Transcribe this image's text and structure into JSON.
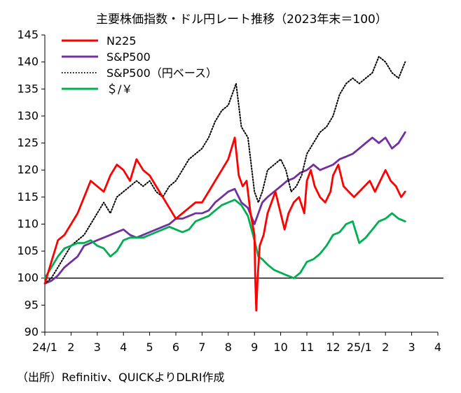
{
  "chart_data": {
    "type": "line",
    "title": "主要株価指数・ドル円レート推移（2023年末＝100）",
    "xlabel": "",
    "ylabel": "",
    "ylim": [
      90,
      145
    ],
    "yticks": [
      90,
      95,
      100,
      105,
      110,
      115,
      120,
      125,
      130,
      135,
      140,
      145
    ],
    "ytick_labels": [
      "90",
      "95",
      "100",
      "105",
      "110",
      "115",
      "120",
      "125",
      "130",
      "135",
      "140",
      "145"
    ],
    "xlim": [
      0,
      15
    ],
    "xticks": [
      0,
      1,
      2,
      3,
      4,
      5,
      6,
      7,
      8,
      9,
      10,
      11,
      12,
      13,
      14,
      15
    ],
    "xtick_labels": [
      "24/1",
      "2",
      "3",
      "4",
      "5",
      "6",
      "7",
      "8",
      "9",
      "10",
      "11",
      "12",
      "25/1",
      "2",
      "3",
      "4"
    ],
    "baseline": 100,
    "grid": false,
    "legend_position": "top-left",
    "series": [
      {
        "name": "N225",
        "color": "#ff0000",
        "style": "solid",
        "x": [
          0,
          0.25,
          0.5,
          0.75,
          1.0,
          1.25,
          1.5,
          1.75,
          2.0,
          2.25,
          2.5,
          2.75,
          3.0,
          3.25,
          3.5,
          3.75,
          4.0,
          4.25,
          4.5,
          4.75,
          5.0,
          5.25,
          5.5,
          5.75,
          6.0,
          6.25,
          6.5,
          6.75,
          7.0,
          7.25,
          7.4,
          7.55,
          7.7,
          7.85,
          8.0,
          8.03,
          8.07,
          8.12,
          8.2,
          8.35,
          8.5,
          8.65,
          8.8,
          9.0,
          9.15,
          9.3,
          9.5,
          9.7,
          9.9,
          10.0,
          10.15,
          10.3,
          10.5,
          10.7,
          10.9,
          11.0,
          11.2,
          11.4,
          11.6,
          11.8,
          12.0,
          12.2,
          12.4,
          12.6,
          12.8,
          13.0,
          13.2,
          13.4,
          13.6,
          13.75
        ],
        "y": [
          99,
          103,
          107,
          108,
          110,
          112,
          115,
          118,
          117,
          116,
          119,
          121,
          120,
          118,
          122,
          120,
          119,
          117,
          115,
          113,
          111,
          112,
          113,
          114,
          114,
          116,
          118,
          120,
          122,
          126,
          119,
          117,
          118,
          112,
          108,
          100,
          94,
          100,
          106,
          108,
          112,
          114,
          116,
          112,
          109,
          112,
          114,
          115,
          112,
          118,
          120,
          117,
          115,
          114,
          116,
          119,
          121,
          117,
          116,
          115,
          116,
          117,
          118,
          116,
          118,
          120,
          118,
          117,
          115,
          116
        ]
      },
      {
        "name": "S&P500",
        "color": "#7030a0",
        "style": "solid",
        "x": [
          0,
          0.25,
          0.5,
          0.75,
          1.0,
          1.25,
          1.5,
          1.75,
          2.0,
          2.25,
          2.5,
          2.75,
          3.0,
          3.25,
          3.5,
          3.75,
          4.0,
          4.25,
          4.5,
          4.75,
          5.0,
          5.25,
          5.5,
          5.75,
          6.0,
          6.25,
          6.5,
          6.75,
          7.0,
          7.25,
          7.5,
          7.75,
          8.0,
          8.15,
          8.3,
          8.5,
          8.75,
          9.0,
          9.25,
          9.5,
          9.75,
          10.0,
          10.25,
          10.5,
          10.75,
          11.0,
          11.25,
          11.5,
          11.75,
          12.0,
          12.25,
          12.5,
          12.75,
          13.0,
          13.25,
          13.5,
          13.75
        ],
        "y": [
          99,
          99.5,
          100.5,
          102,
          103,
          104,
          106,
          106.5,
          107,
          107.5,
          108,
          108.5,
          109,
          108,
          107.5,
          108,
          108.5,
          109,
          109.5,
          110,
          111,
          111,
          111.5,
          112,
          112,
          112.5,
          114,
          115,
          116,
          116.5,
          114,
          113,
          110,
          112,
          114,
          115,
          116,
          117,
          118,
          118.5,
          119.5,
          120,
          121,
          120,
          120.5,
          121,
          122,
          122.5,
          123,
          124,
          125,
          126,
          125,
          126,
          124,
          125,
          127
        ]
      },
      {
        "name": "S&P500（円ベース）",
        "color": "#000000",
        "style": "dotted",
        "x": [
          0,
          0.25,
          0.5,
          0.75,
          1.0,
          1.25,
          1.5,
          1.75,
          2.0,
          2.25,
          2.5,
          2.75,
          3.0,
          3.25,
          3.5,
          3.75,
          4.0,
          4.25,
          4.5,
          4.75,
          5.0,
          5.25,
          5.5,
          5.75,
          6.0,
          6.25,
          6.5,
          6.75,
          7.0,
          7.15,
          7.3,
          7.5,
          7.75,
          8.0,
          8.15,
          8.3,
          8.5,
          8.75,
          9.0,
          9.2,
          9.4,
          9.6,
          9.8,
          10.0,
          10.25,
          10.5,
          10.75,
          11.0,
          11.25,
          11.5,
          11.75,
          12.0,
          12.25,
          12.5,
          12.75,
          13.0,
          13.25,
          13.5,
          13.75
        ],
        "y": [
          99,
          100,
          102,
          104,
          106,
          107,
          108,
          110,
          112,
          114,
          112,
          115,
          116,
          117,
          118,
          117,
          118,
          116,
          115,
          117,
          118,
          120,
          122,
          123,
          124,
          126,
          129,
          131,
          132,
          134,
          136,
          128,
          126,
          116,
          114,
          116,
          120,
          121,
          122,
          120,
          116,
          117,
          119,
          123,
          125,
          127,
          128,
          130,
          134,
          136,
          137,
          136,
          137,
          138,
          141,
          140,
          138,
          137,
          140
        ]
      },
      {
        "name": "＄/￥",
        "color": "#00b050",
        "style": "solid",
        "x": [
          0,
          0.25,
          0.5,
          0.75,
          1.0,
          1.25,
          1.5,
          1.75,
          2.0,
          2.25,
          2.5,
          2.75,
          3.0,
          3.25,
          3.5,
          3.75,
          4.0,
          4.25,
          4.5,
          4.75,
          5.0,
          5.25,
          5.5,
          5.75,
          6.0,
          6.25,
          6.5,
          6.75,
          7.0,
          7.25,
          7.5,
          7.75,
          8.0,
          8.15,
          8.3,
          8.5,
          8.75,
          9.0,
          9.25,
          9.5,
          9.75,
          10.0,
          10.25,
          10.5,
          10.75,
          11.0,
          11.25,
          11.5,
          11.75,
          12.0,
          12.25,
          12.5,
          12.75,
          13.0,
          13.25,
          13.5,
          13.75
        ],
        "y": [
          100,
          102,
          104,
          105.5,
          106,
          106.5,
          106.5,
          107,
          106,
          105.5,
          104,
          105,
          107,
          107.5,
          107.5,
          107.5,
          108,
          108.5,
          109,
          109.5,
          109,
          108.5,
          109,
          110.5,
          111,
          111.5,
          112.5,
          113.5,
          114,
          114.5,
          113.5,
          111.5,
          107,
          104,
          103.5,
          102.5,
          101.5,
          101,
          100.5,
          100,
          101,
          103,
          103.5,
          104.5,
          106,
          108,
          108.5,
          110,
          110.5,
          106.5,
          107.5,
          109,
          110.5,
          111,
          112,
          111,
          110.5
        ]
      }
    ]
  },
  "source": "（出所）Refinitiv、QUICKよりDLRI作成"
}
